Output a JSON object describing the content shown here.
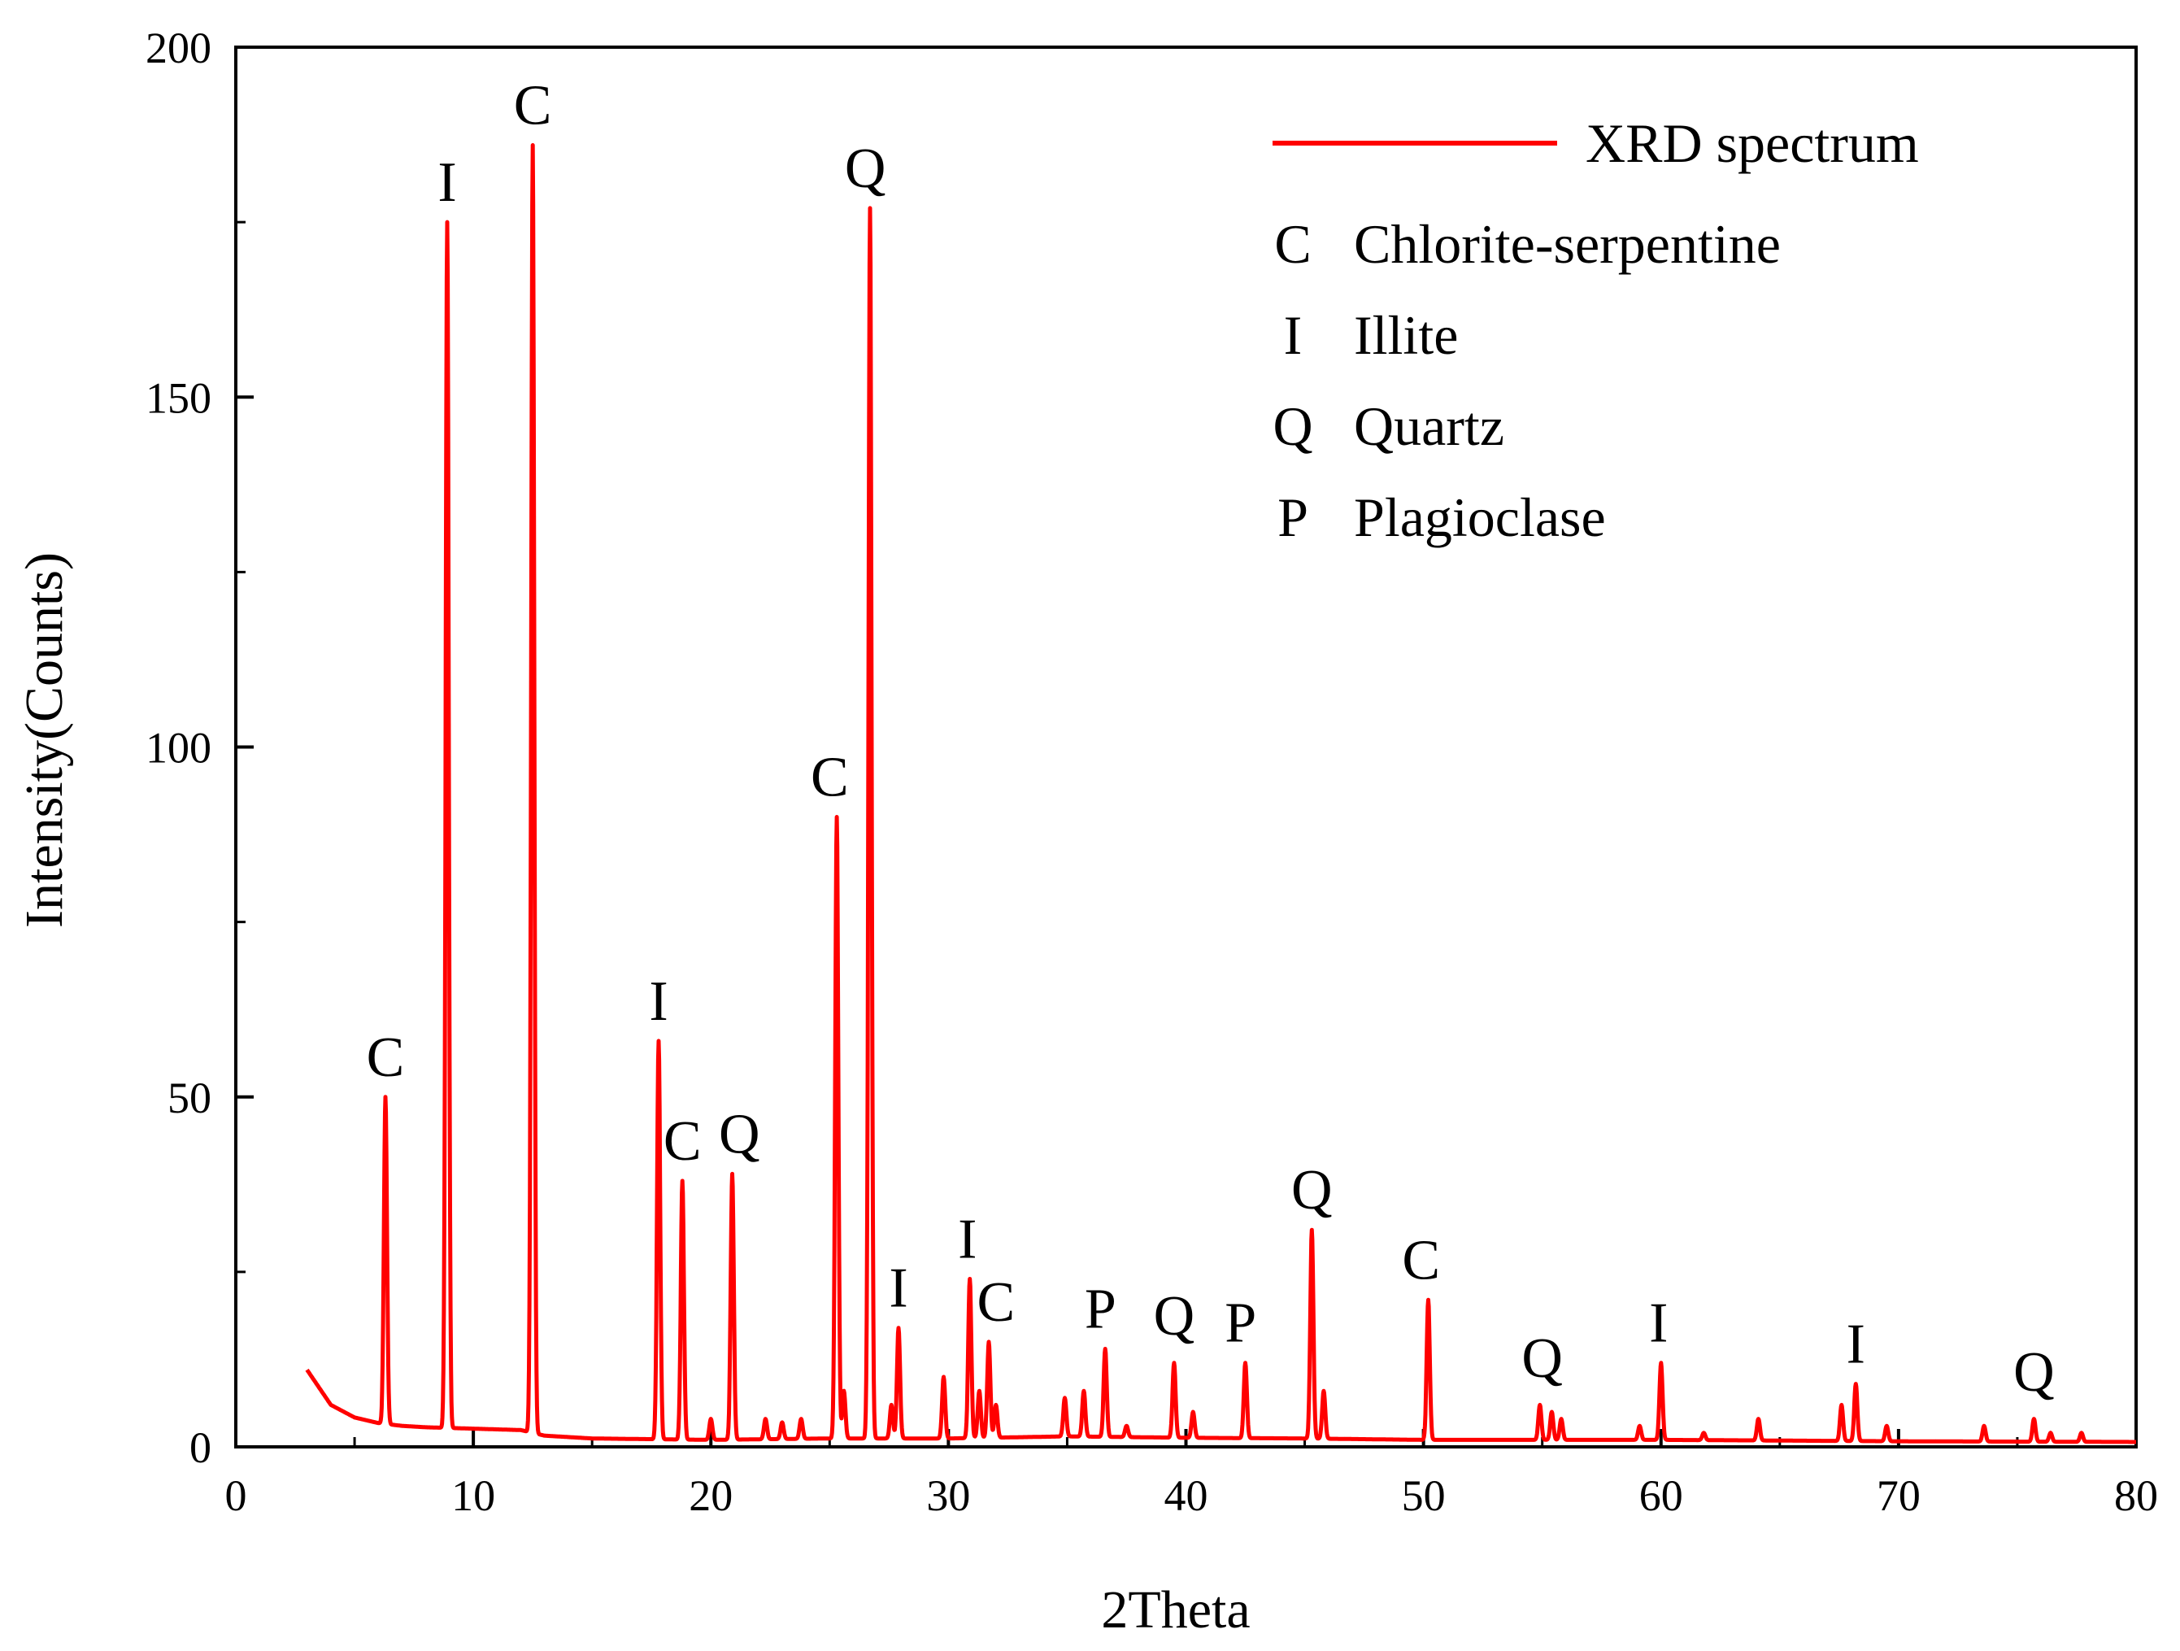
{
  "chart_data": {
    "type": "line",
    "title": "",
    "xlabel": "2Theta",
    "ylabel": "Intensity(Counts)",
    "xlim": [
      0,
      80
    ],
    "ylim": [
      0,
      200
    ],
    "xticks": [
      0,
      10,
      20,
      30,
      40,
      50,
      60,
      70,
      80
    ],
    "yticks": [
      0,
      50,
      100,
      150,
      200
    ],
    "grid": false,
    "legend_position": "top-right",
    "colors": {
      "line": "#ff0000",
      "axis": "#000000",
      "text": "#000000"
    },
    "series": [
      {
        "name": "XRD spectrum",
        "baseline": [
          [
            3,
            11
          ],
          [
            4,
            6
          ],
          [
            5,
            4.2
          ],
          [
            6,
            3.4
          ],
          [
            7,
            3
          ],
          [
            8,
            2.8
          ],
          [
            10,
            2.6
          ],
          [
            12,
            2.4
          ],
          [
            13,
            1.6
          ],
          [
            15,
            1.2
          ],
          [
            20,
            1
          ],
          [
            25,
            1.2
          ],
          [
            30,
            1.2
          ],
          [
            35,
            1.5
          ],
          [
            40,
            1.3
          ],
          [
            45,
            1.2
          ],
          [
            50,
            1
          ],
          [
            60,
            1
          ],
          [
            70,
            0.8
          ],
          [
            80,
            0.7
          ]
        ],
        "peaks": [
          [
            6.3,
            50
          ],
          [
            8.9,
            175
          ],
          [
            12.5,
            186
          ],
          [
            17.8,
            58
          ],
          [
            18.8,
            38
          ],
          [
            20.0,
            4
          ],
          [
            20.9,
            39
          ],
          [
            22.3,
            4
          ],
          [
            23.0,
            3.5
          ],
          [
            23.8,
            4
          ],
          [
            25.3,
            90
          ],
          [
            25.6,
            8
          ],
          [
            26.7,
            177
          ],
          [
            27.6,
            6
          ],
          [
            27.9,
            17
          ],
          [
            29.8,
            10
          ],
          [
            30.9,
            24
          ],
          [
            31.3,
            8
          ],
          [
            31.7,
            15
          ],
          [
            32.0,
            6
          ],
          [
            34.9,
            7
          ],
          [
            35.7,
            8
          ],
          [
            36.6,
            14
          ],
          [
            37.5,
            3
          ],
          [
            39.5,
            12
          ],
          [
            40.3,
            5
          ],
          [
            42.5,
            12
          ],
          [
            45.3,
            31
          ],
          [
            45.8,
            8
          ],
          [
            50.2,
            21
          ],
          [
            54.9,
            6
          ],
          [
            55.4,
            5
          ],
          [
            55.8,
            4
          ],
          [
            59.1,
            3
          ],
          [
            60.0,
            12
          ],
          [
            61.8,
            2
          ],
          [
            64.1,
            4
          ],
          [
            67.6,
            6
          ],
          [
            68.2,
            9
          ],
          [
            69.5,
            3
          ],
          [
            73.6,
            3
          ],
          [
            75.7,
            4
          ],
          [
            76.4,
            2
          ],
          [
            77.7,
            2
          ]
        ]
      }
    ],
    "annotations": [
      {
        "label": "C",
        "x": 6.3,
        "y": 50
      },
      {
        "label": "I",
        "x": 8.9,
        "y": 175
      },
      {
        "label": "C",
        "x": 12.5,
        "y": 186
      },
      {
        "label": "I",
        "x": 17.8,
        "y": 58
      },
      {
        "label": "C",
        "x": 18.8,
        "y": 38
      },
      {
        "label": "Q",
        "x": 21.2,
        "y": 39
      },
      {
        "label": "C",
        "x": 25.0,
        "y": 90
      },
      {
        "label": "Q",
        "x": 26.5,
        "y": 177
      },
      {
        "label": "I",
        "x": 27.9,
        "y": 17
      },
      {
        "label": "I",
        "x": 30.8,
        "y": 24
      },
      {
        "label": "C",
        "x": 32.0,
        "y": 15
      },
      {
        "label": "P",
        "x": 36.4,
        "y": 14
      },
      {
        "label": "Q",
        "x": 39.5,
        "y": 13
      },
      {
        "label": "P",
        "x": 42.3,
        "y": 12
      },
      {
        "label": "Q",
        "x": 45.3,
        "y": 31
      },
      {
        "label": "C",
        "x": 49.9,
        "y": 21
      },
      {
        "label": "Q",
        "x": 55.0,
        "y": 7
      },
      {
        "label": "I",
        "x": 59.9,
        "y": 12
      },
      {
        "label": "I",
        "x": 68.2,
        "y": 9
      },
      {
        "label": "Q",
        "x": 75.7,
        "y": 5
      }
    ],
    "legend": {
      "line_label": "XRD spectrum",
      "entries": [
        {
          "symbol": "C",
          "name": "Chlorite-serpentine"
        },
        {
          "symbol": "I",
          "name": "Illite"
        },
        {
          "symbol": "Q",
          "name": "Quartz"
        },
        {
          "symbol": "P",
          "name": "Plagioclase"
        }
      ]
    }
  }
}
